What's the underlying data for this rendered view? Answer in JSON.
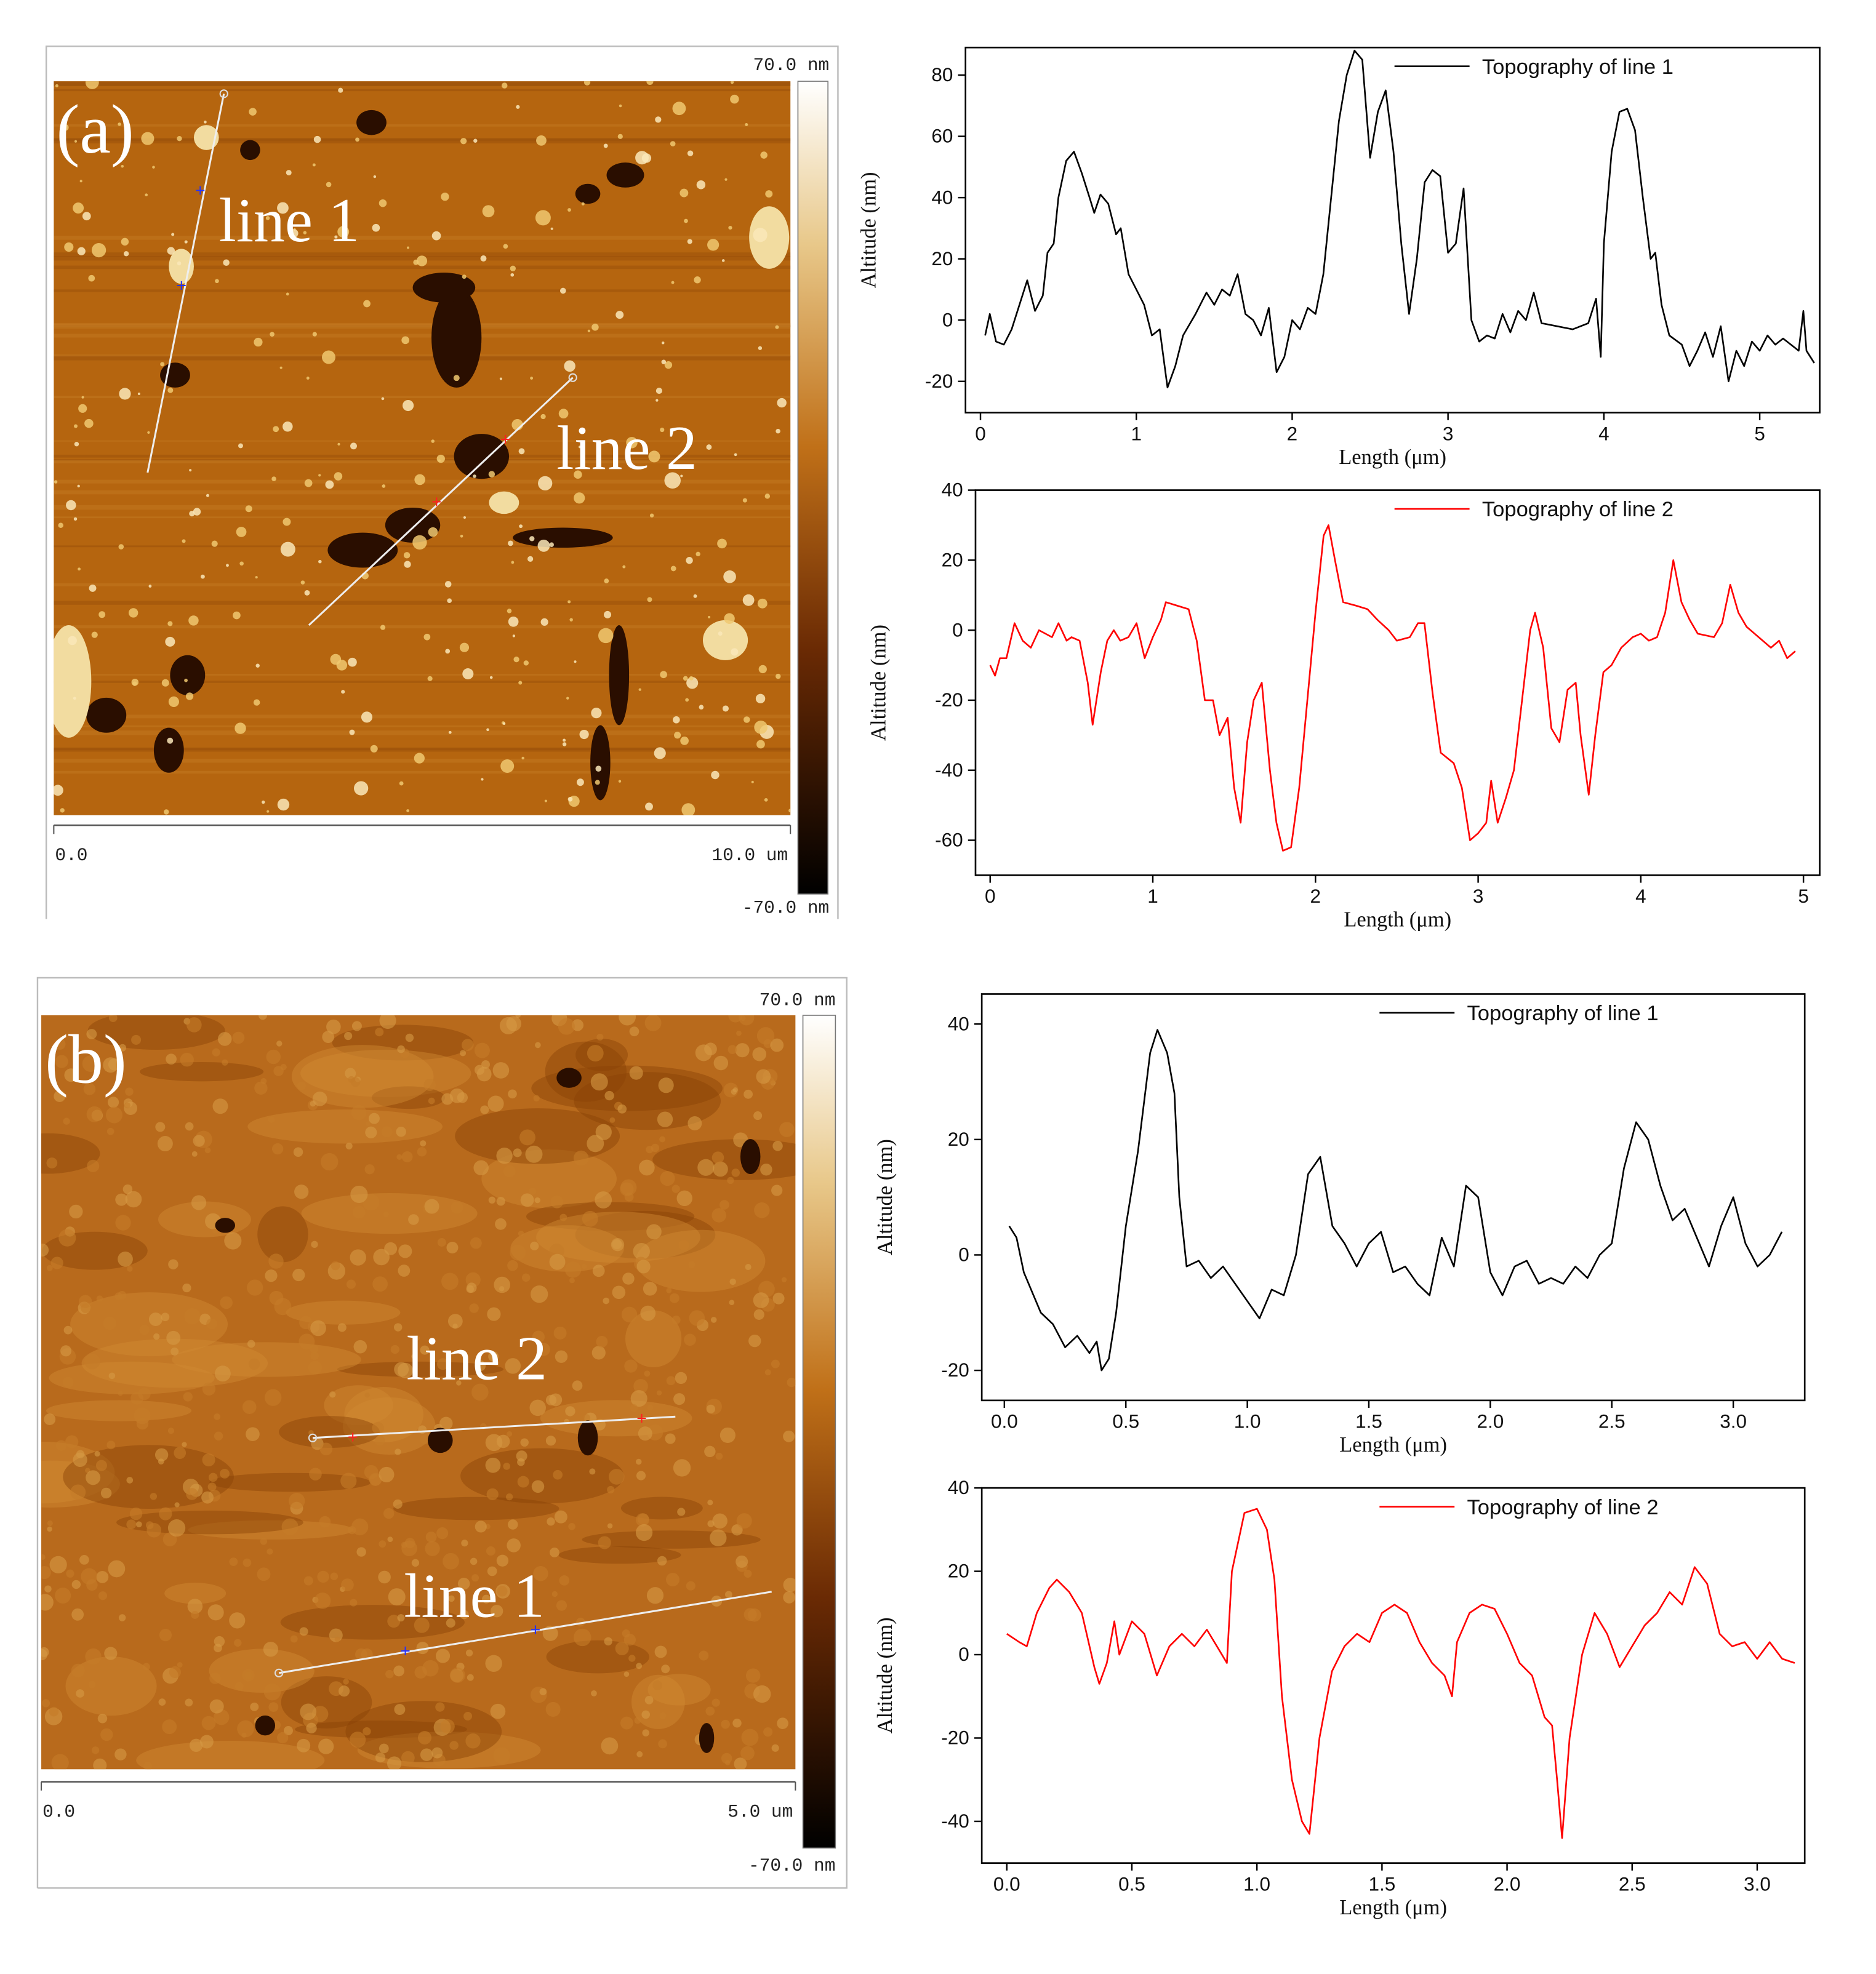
{
  "panels": [
    {
      "label": "(a)",
      "line_labels": [
        "line 1",
        "line 2"
      ],
      "colorbar_max": "70.0 nm",
      "colorbar_min": "-70.0 nm",
      "axis_start": "0.0",
      "axis_end": "10.0 um"
    },
    {
      "label": "(b)",
      "line_labels": [
        "line 1",
        "line 2"
      ],
      "colorbar_max": "70.0 nm",
      "colorbar_min": "-70.0 nm",
      "axis_start": "0.0",
      "axis_end": "5.0 um"
    }
  ],
  "chart_data": [
    {
      "type": "line",
      "xlabel": "Length (μm)",
      "ylabel": "Altitude (nm)",
      "legend": "upper right",
      "x": [
        0.03,
        0.06,
        0.1,
        0.15,
        0.2,
        0.25,
        0.3,
        0.35,
        0.4,
        0.43,
        0.47,
        0.5,
        0.55,
        0.6,
        0.65,
        0.7,
        0.73,
        0.77,
        0.82,
        0.87,
        0.9,
        0.95,
        1.0,
        1.05,
        1.1,
        1.15,
        1.2,
        1.25,
        1.3,
        1.38,
        1.45,
        1.5,
        1.55,
        1.6,
        1.65,
        1.7,
        1.75,
        1.8,
        1.85,
        1.9,
        1.95,
        2.0,
        2.05,
        2.1,
        2.15,
        2.2,
        2.25,
        2.3,
        2.35,
        2.4,
        2.45,
        2.5,
        2.55,
        2.6,
        2.65,
        2.7,
        2.75,
        2.8,
        2.85,
        2.9,
        2.95,
        3.0,
        3.05,
        3.1,
        3.15,
        3.2,
        3.25,
        3.3,
        3.35,
        3.4,
        3.45,
        3.5,
        3.55,
        3.6,
        3.7,
        3.8,
        3.9,
        3.95,
        3.98,
        4.0,
        4.05,
        4.1,
        4.15,
        4.2,
        4.25,
        4.3,
        4.33,
        4.37,
        4.42,
        4.5,
        4.55,
        4.6,
        4.65,
        4.7,
        4.75,
        4.8,
        4.85,
        4.9,
        4.95,
        5.0,
        5.05,
        5.1,
        5.15,
        5.25,
        5.28,
        5.3,
        5.35
      ],
      "series": [
        {
          "name": "Topography of line 1",
          "color": "#000000",
          "values": [
            -5,
            2,
            -7,
            -8,
            -3,
            5,
            13,
            3,
            8,
            22,
            25,
            40,
            52,
            55,
            48,
            40,
            35,
            41,
            38,
            28,
            30,
            15,
            10,
            5,
            -5,
            -3,
            -22,
            -15,
            -5,
            2,
            9,
            5,
            10,
            8,
            15,
            2,
            0,
            -5,
            4,
            -17,
            -12,
            0,
            -3,
            4,
            2,
            15,
            40,
            65,
            80,
            88,
            85,
            53,
            68,
            75,
            55,
            25,
            2,
            20,
            45,
            49,
            47,
            22,
            25,
            43,
            0,
            -7,
            -5,
            -6,
            2,
            -4,
            3,
            0,
            9,
            -1,
            -2,
            -3,
            -1,
            7,
            -12,
            25,
            55,
            68,
            69,
            62,
            40,
            20,
            22,
            5,
            -5,
            -8,
            -15,
            -10,
            -4,
            -12,
            -2,
            -20,
            -10,
            -15,
            -7,
            -10,
            -5,
            -8,
            -6,
            -10,
            3,
            -10,
            -14
          ]
        }
      ],
      "xlim": [
        -0.096,
        5.385
      ],
      "xticks": [
        0,
        1,
        2,
        3,
        4,
        5
      ],
      "ylim": [
        -30.2,
        89
      ],
      "yticks": [
        -20,
        0,
        20,
        40,
        60,
        80
      ]
    },
    {
      "type": "line",
      "xlabel": "Length (μm)",
      "ylabel": "Altitude (nm)",
      "legend": "upper right",
      "x": [
        0,
        0.03,
        0.06,
        0.1,
        0.15,
        0.2,
        0.25,
        0.3,
        0.38,
        0.42,
        0.47,
        0.5,
        0.55,
        0.6,
        0.63,
        0.68,
        0.72,
        0.76,
        0.8,
        0.85,
        0.9,
        0.95,
        1.0,
        1.05,
        1.08,
        1.15,
        1.22,
        1.27,
        1.32,
        1.37,
        1.41,
        1.46,
        1.5,
        1.54,
        1.58,
        1.62,
        1.67,
        1.72,
        1.76,
        1.8,
        1.85,
        1.9,
        1.95,
        2.0,
        2.05,
        2.08,
        2.12,
        2.17,
        2.25,
        2.32,
        2.38,
        2.45,
        2.5,
        2.58,
        2.63,
        2.67,
        2.72,
        2.77,
        2.85,
        2.9,
        2.95,
        3.0,
        3.05,
        3.08,
        3.12,
        3.17,
        3.22,
        3.27,
        3.32,
        3.35,
        3.4,
        3.45,
        3.5,
        3.55,
        3.6,
        3.63,
        3.68,
        3.72,
        3.77,
        3.82,
        3.88,
        3.95,
        4.0,
        4.05,
        4.1,
        4.15,
        4.2,
        4.25,
        4.3,
        4.35,
        4.45,
        4.5,
        4.55,
        4.6,
        4.65,
        4.75,
        4.8,
        4.85,
        4.9,
        4.95
      ],
      "series": [
        {
          "name": "Topography of line 2",
          "color": "#ff0000",
          "values": [
            -10,
            -13,
            -8,
            -8,
            2,
            -3,
            -5,
            0,
            -2,
            2,
            -3,
            -2,
            -3,
            -15,
            -27,
            -12,
            -3,
            0,
            -3,
            -2,
            2,
            -8,
            -2,
            3,
            8,
            7,
            6,
            -3,
            -20,
            -20,
            -30,
            -25,
            -45,
            -55,
            -32,
            -20,
            -15,
            -40,
            -55,
            -63,
            -62,
            -45,
            -20,
            5,
            27,
            30,
            20,
            8,
            7,
            6,
            3,
            0,
            -3,
            -2,
            2,
            2,
            -18,
            -35,
            -38,
            -45,
            -60,
            -58,
            -55,
            -43,
            -55,
            -48,
            -40,
            -20,
            0,
            5,
            -5,
            -28,
            -32,
            -17,
            -15,
            -30,
            -47,
            -30,
            -12,
            -10,
            -5,
            -2,
            -1,
            -3,
            -2,
            5,
            20,
            8,
            3,
            -1,
            -2,
            2,
            13,
            5,
            1,
            -3,
            -5,
            -3,
            -8,
            -6
          ]
        }
      ],
      "xlim": [
        -0.09,
        5.1
      ],
      "xticks": [
        0,
        1,
        2,
        3,
        4,
        5
      ],
      "ylim": [
        -70,
        40
      ],
      "yticks": [
        -60,
        -40,
        -20,
        0,
        20,
        40
      ]
    },
    {
      "type": "line",
      "xlabel": "Length (μm)",
      "ylabel": "Altitude (nm)",
      "legend": "upper right",
      "x": [
        0.02,
        0.05,
        0.08,
        0.12,
        0.15,
        0.2,
        0.25,
        0.3,
        0.35,
        0.38,
        0.4,
        0.43,
        0.46,
        0.5,
        0.55,
        0.6,
        0.63,
        0.67,
        0.7,
        0.72,
        0.75,
        0.8,
        0.85,
        0.9,
        0.95,
        1.0,
        1.05,
        1.1,
        1.15,
        1.2,
        1.25,
        1.3,
        1.35,
        1.4,
        1.45,
        1.5,
        1.55,
        1.6,
        1.65,
        1.7,
        1.75,
        1.8,
        1.85,
        1.9,
        1.95,
        2.0,
        2.05,
        2.1,
        2.15,
        2.2,
        2.25,
        2.3,
        2.35,
        2.4,
        2.45,
        2.5,
        2.55,
        2.6,
        2.65,
        2.7,
        2.75,
        2.8,
        2.85,
        2.9,
        2.95,
        3.0,
        3.05,
        3.1,
        3.15,
        3.2
      ],
      "series": [
        {
          "name": "Topography of line 1",
          "color": "#000000",
          "values": [
            5,
            3,
            -3,
            -7,
            -10,
            -12,
            -16,
            -14,
            -17,
            -15,
            -20,
            -18,
            -10,
            5,
            18,
            35,
            39,
            35,
            28,
            10,
            -2,
            -1,
            -4,
            -2,
            -5,
            -8,
            -11,
            -6,
            -7,
            0,
            14,
            17,
            5,
            2,
            -2,
            2,
            4,
            -3,
            -2,
            -5,
            -7,
            3,
            -2,
            12,
            10,
            -3,
            -7,
            -2,
            -1,
            -5,
            -4,
            -5,
            -2,
            -4,
            0,
            2,
            15,
            23,
            20,
            12,
            6,
            8,
            3,
            -2,
            5,
            10,
            2,
            -2,
            0,
            4
          ]
        }
      ],
      "xlim": [
        -0.093,
        3.294
      ],
      "xticks": [
        {
          "value": 0,
          "label": "0.0"
        },
        0.5,
        {
          "value": 1,
          "label": "1.0"
        },
        1.5,
        {
          "value": 2,
          "label": "2.0"
        },
        2.5,
        {
          "value": 3,
          "label": "3.0"
        }
      ],
      "ylim": [
        -25.2,
        45.2
      ],
      "yticks": [
        -20,
        0,
        20,
        40
      ]
    },
    {
      "type": "line",
      "xlabel": "Length (μm)",
      "ylabel": "Altitude (nm)",
      "legend": "upper right",
      "x": [
        0,
        0.05,
        0.08,
        0.12,
        0.17,
        0.2,
        0.25,
        0.3,
        0.35,
        0.37,
        0.4,
        0.43,
        0.45,
        0.5,
        0.55,
        0.6,
        0.65,
        0.7,
        0.75,
        0.8,
        0.85,
        0.88,
        0.9,
        0.95,
        1.0,
        1.04,
        1.07,
        1.1,
        1.14,
        1.18,
        1.21,
        1.25,
        1.3,
        1.35,
        1.4,
        1.45,
        1.5,
        1.55,
        1.6,
        1.65,
        1.7,
        1.75,
        1.78,
        1.8,
        1.85,
        1.9,
        1.95,
        2.0,
        2.05,
        2.1,
        2.15,
        2.18,
        2.2,
        2.22,
        2.25,
        2.3,
        2.35,
        2.4,
        2.45,
        2.5,
        2.55,
        2.6,
        2.65,
        2.7,
        2.75,
        2.8,
        2.85,
        2.9,
        2.95,
        3.0,
        3.05,
        3.1,
        3.15
      ],
      "series": [
        {
          "name": "Topography of line 2",
          "color": "#ff0000",
          "values": [
            5,
            3,
            2,
            10,
            16,
            18,
            15,
            10,
            -3,
            -7,
            -2,
            8,
            0,
            8,
            5,
            -5,
            2,
            5,
            2,
            6,
            1,
            -2,
            20,
            34,
            35,
            30,
            18,
            -10,
            -30,
            -40,
            -43,
            -20,
            -4,
            2,
            5,
            3,
            10,
            12,
            10,
            3,
            -2,
            -5,
            -10,
            3,
            10,
            12,
            11,
            5,
            -2,
            -5,
            -15,
            -17,
            -30,
            -44,
            -20,
            0,
            10,
            5,
            -3,
            2,
            7,
            10,
            15,
            12,
            21,
            17,
            5,
            2,
            3,
            -1,
            3,
            -1,
            -2
          ]
        }
      ],
      "xlim": [
        -0.1,
        3.19
      ],
      "xticks": [
        {
          "value": 0,
          "label": "0.0"
        },
        0.5,
        {
          "value": 1,
          "label": "1.0"
        },
        1.5,
        {
          "value": 2,
          "label": "2.0"
        },
        2.5,
        {
          "value": 3,
          "label": "3.0"
        }
      ],
      "ylim": [
        -50,
        40
      ],
      "yticks": [
        -40,
        -20,
        0,
        20,
        40
      ]
    }
  ]
}
